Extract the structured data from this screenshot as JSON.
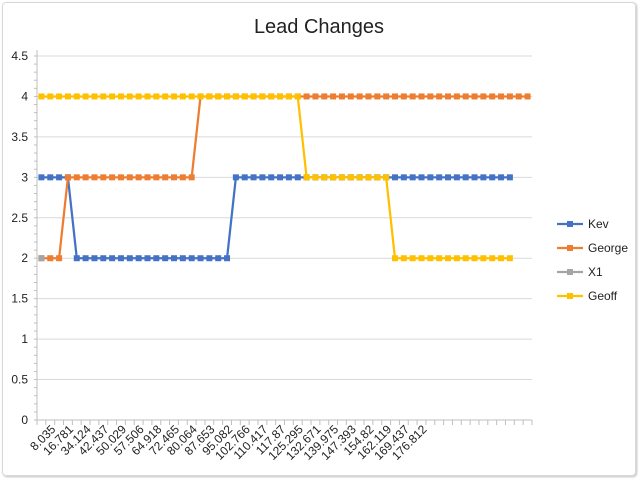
{
  "chart_data": {
    "type": "line",
    "title": "Lead Changes",
    "xlabel": "",
    "ylabel": "",
    "ylim": [
      0,
      4.5
    ],
    "yticks": [
      "0",
      "0.5",
      "1",
      "1.5",
      "2",
      "2.5",
      "3",
      "3.5",
      "4",
      "4.5"
    ],
    "grid": true,
    "legend_position": "right",
    "x_tick_labels": [
      "8.035",
      "16.781",
      "34.124",
      "42.437",
      "50.029",
      "57.506",
      "64.918",
      "72.465",
      "80.064",
      "87.653",
      "95.082",
      "102.766",
      "110.417",
      "117.87",
      "125.295",
      "132.671",
      "139.975",
      "147.393",
      "154.82",
      "162.119",
      "169.437",
      "176.812"
    ],
    "series": [
      {
        "name": "Kev",
        "color": "#4472C4",
        "values": [
          3,
          3,
          3,
          3,
          2,
          2,
          2,
          2,
          2,
          2,
          2,
          2,
          2,
          2,
          2,
          2,
          2,
          2,
          2,
          2,
          2,
          2,
          3,
          3,
          3,
          3,
          3,
          3,
          3,
          3,
          3,
          3,
          3,
          3,
          3,
          3,
          3,
          3,
          3,
          3,
          3,
          3,
          3,
          3,
          3,
          3,
          3,
          3,
          3,
          3,
          3,
          3,
          3,
          3
        ]
      },
      {
        "name": "George",
        "color": "#ED7D31",
        "values": [
          2,
          2,
          2,
          3,
          3,
          3,
          3,
          3,
          3,
          3,
          3,
          3,
          3,
          3,
          3,
          3,
          3,
          3,
          4,
          4,
          4,
          4,
          4,
          4,
          4,
          4,
          4,
          4,
          4,
          4,
          4,
          4,
          4,
          4,
          4,
          4,
          4,
          4,
          4,
          4,
          4,
          4,
          4,
          4,
          4,
          4,
          4,
          4,
          4,
          4,
          4,
          4,
          4,
          4,
          4,
          4
        ]
      },
      {
        "name": "X1",
        "color": "#A5A5A5",
        "values": [
          2
        ]
      },
      {
        "name": "Geoff",
        "color": "#FFC000",
        "values": [
          4,
          4,
          4,
          4,
          4,
          4,
          4,
          4,
          4,
          4,
          4,
          4,
          4,
          4,
          4,
          4,
          4,
          4,
          4,
          4,
          4,
          4,
          4,
          4,
          4,
          4,
          4,
          4,
          4,
          4,
          3,
          3,
          3,
          3,
          3,
          3,
          3,
          3,
          3,
          3,
          2,
          2,
          2,
          2,
          2,
          2,
          2,
          2,
          2,
          2,
          2,
          2,
          2,
          2
        ]
      }
    ]
  }
}
